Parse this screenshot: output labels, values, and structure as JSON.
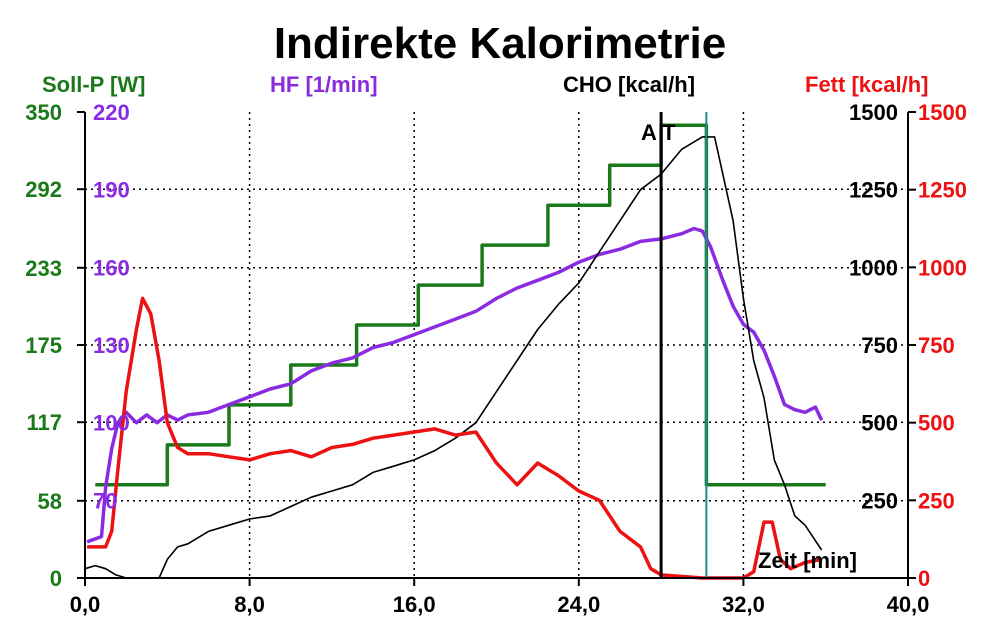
{
  "chart_data": {
    "type": "line",
    "title": "Indirekte Kalorimetrie",
    "xlabel": "Zeit [min]",
    "xlim": [
      0,
      40
    ],
    "x_ticks": [
      "0,0",
      "8,0",
      "16,0",
      "24,0",
      "32,0",
      "40,0"
    ],
    "x_tick_values": [
      0,
      8,
      16,
      24,
      32,
      40
    ],
    "grid": true,
    "axes": {
      "soll_p": {
        "label": "Soll-P [W]",
        "color": "#1a7a1a",
        "range": [
          0,
          350
        ],
        "ticks": [
          "0",
          "58",
          "117",
          "175",
          "233",
          "292",
          "350"
        ],
        "tick_values": [
          0,
          58,
          117,
          175,
          233,
          292,
          350
        ]
      },
      "hf": {
        "label": "HF [1/min]",
        "color": "#8a2be2",
        "range": [
          40,
          220
        ],
        "ticks": [
          "70",
          "100",
          "130",
          "160",
          "190",
          "220"
        ],
        "tick_values": [
          70,
          100,
          130,
          160,
          190,
          220
        ]
      },
      "cho": {
        "label": "CHO [kcal/h]",
        "color": "#000000",
        "range": [
          0,
          1500
        ],
        "ticks": [
          "250",
          "500",
          "750",
          "1000",
          "1250",
          "1500"
        ],
        "tick_values": [
          250,
          500,
          750,
          1000,
          1250,
          1500
        ]
      },
      "fett": {
        "label": "Fett [kcal/h]",
        "color": "#ee1111",
        "range": [
          0,
          1500
        ],
        "ticks": [
          "0",
          "250",
          "500",
          "750",
          "1000",
          "1250",
          "1500"
        ],
        "tick_values": [
          0,
          250,
          500,
          750,
          1000,
          1250,
          1500
        ]
      }
    },
    "annotations": {
      "at_label": "A T",
      "at_x": 28.0,
      "cyan_marker_x": 30.2,
      "cyan_color": "#1f8a8a"
    },
    "series": [
      {
        "name": "Soll-P [W]",
        "axis": "soll_p",
        "color": "#1a7a1a",
        "step": true,
        "x": [
          0.5,
          1.0,
          4.0,
          7.0,
          10.0,
          13.2,
          16.2,
          19.3,
          22.5,
          25.5,
          28.0,
          30.2,
          36.0
        ],
        "y": [
          70,
          70,
          100,
          130,
          160,
          190,
          220,
          250,
          280,
          310,
          340,
          70,
          70
        ]
      },
      {
        "name": "HF [1/min]",
        "axis": "hf",
        "color": "#8a2be2",
        "step": false,
        "x": [
          0.1,
          0.8,
          1.0,
          1.3,
          1.6,
          2.0,
          2.5,
          3.0,
          3.5,
          4.0,
          4.5,
          5.0,
          6.0,
          7.0,
          8.0,
          9.0,
          10.0,
          11.0,
          12.0,
          13.0,
          14.0,
          15.0,
          16.0,
          17.0,
          18.0,
          19.0,
          20.0,
          21.0,
          22.0,
          23.0,
          24.0,
          25.0,
          26.0,
          27.0,
          28.0,
          29.0,
          29.6,
          30.0,
          30.4,
          31.0,
          31.5,
          32.0,
          32.5,
          33.0,
          33.5,
          34.0,
          34.5,
          35.0,
          35.5,
          35.8
        ],
        "y": [
          54,
          56,
          75,
          90,
          100,
          104,
          100,
          103,
          100,
          103,
          101,
          103,
          104,
          107,
          110,
          113,
          115,
          120,
          123,
          125,
          129,
          131,
          134,
          137,
          140,
          143,
          148,
          152,
          155,
          158,
          162,
          165,
          167,
          170,
          171,
          173,
          175,
          174,
          168,
          155,
          145,
          138,
          135,
          128,
          118,
          107,
          105,
          104,
          106,
          101
        ]
      },
      {
        "name": "CHO [kcal/h]",
        "axis": "cho",
        "color": "#000000",
        "step": false,
        "x": [
          0.0,
          0.5,
          1.0,
          1.5,
          2.0,
          3.0,
          3.6,
          4.0,
          4.5,
          5.0,
          6.0,
          7.0,
          8.0,
          9.0,
          10.0,
          11.0,
          12.0,
          13.0,
          14.0,
          15.0,
          16.0,
          17.0,
          18.0,
          19.0,
          20.0,
          21.0,
          22.0,
          23.0,
          24.0,
          25.0,
          26.0,
          27.0,
          28.0,
          29.0,
          30.0,
          30.6,
          31.0,
          31.5,
          32.0,
          32.5,
          33.0,
          33.5,
          34.0,
          34.5,
          35.0,
          35.5,
          35.8
        ],
        "y": [
          30,
          40,
          30,
          10,
          0,
          0,
          0,
          60,
          100,
          110,
          150,
          170,
          190,
          200,
          230,
          260,
          280,
          300,
          340,
          360,
          380,
          410,
          450,
          500,
          600,
          700,
          800,
          880,
          950,
          1050,
          1150,
          1250,
          1300,
          1380,
          1420,
          1420,
          1300,
          1150,
          900,
          700,
          580,
          380,
          300,
          200,
          170,
          120,
          90
        ]
      },
      {
        "name": "Fett [kcal/h]",
        "axis": "fett",
        "color": "#ee1111",
        "step": false,
        "x": [
          0.1,
          1.0,
          1.3,
          1.6,
          2.0,
          2.5,
          2.8,
          3.2,
          3.6,
          4.0,
          4.5,
          5.0,
          6.0,
          7.0,
          8.0,
          9.0,
          10.0,
          11.0,
          12.0,
          13.0,
          14.0,
          15.0,
          16.0,
          17.0,
          18.0,
          19.0,
          20.0,
          21.0,
          22.0,
          23.0,
          24.0,
          25.0,
          26.0,
          27.0,
          27.5,
          28.0,
          30.0,
          31.0,
          32.0,
          32.5,
          33.0,
          33.4,
          33.8,
          34.3,
          35.0,
          35.8
        ],
        "y": [
          100,
          100,
          150,
          350,
          600,
          800,
          900,
          850,
          700,
          500,
          420,
          400,
          400,
          390,
          380,
          400,
          410,
          390,
          420,
          430,
          450,
          460,
          470,
          480,
          460,
          470,
          370,
          300,
          370,
          330,
          280,
          250,
          150,
          100,
          30,
          10,
          0,
          0,
          0,
          20,
          180,
          180,
          60,
          30,
          50,
          60
        ]
      }
    ]
  }
}
